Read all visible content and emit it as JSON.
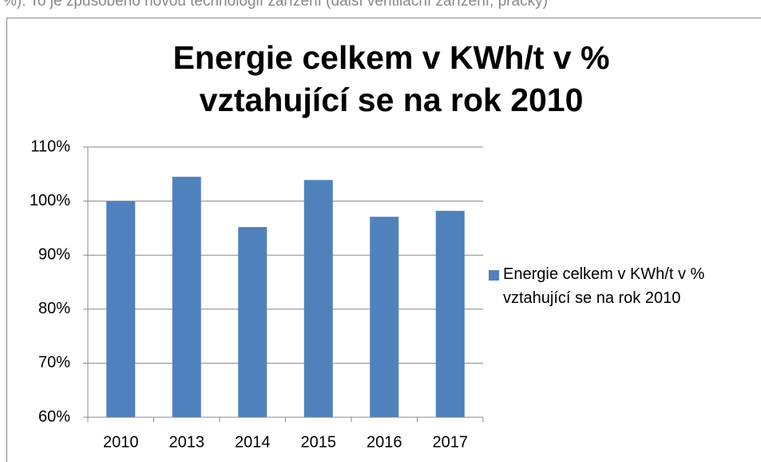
{
  "page_text": "%). To je způsobeno novou technologií zařízení (další ventilační zařízení, pračky)",
  "chart_data": {
    "type": "bar",
    "title": [
      "Energie celkem v KWh/t v %",
      "vztahující se na rok 2010"
    ],
    "categories": [
      "2010",
      "2013",
      "2014",
      "2015",
      "2016",
      "2017"
    ],
    "series": [
      {
        "name": "Energie celkem v KWh/t v % vztahující se na rok 2010",
        "color": "#4f81bd",
        "values": [
          100,
          104.5,
          95.2,
          103.9,
          97.1,
          98.2
        ]
      }
    ],
    "ylim": [
      60,
      110
    ],
    "yticks": [
      {
        "value": 60,
        "label": "60%"
      },
      {
        "value": 70,
        "label": "70%"
      },
      {
        "value": 80,
        "label": "80%"
      },
      {
        "value": 90,
        "label": "90%"
      },
      {
        "value": 100,
        "label": "100%"
      },
      {
        "value": 110,
        "label": "110%"
      }
    ],
    "grid": true,
    "legend": "right"
  }
}
